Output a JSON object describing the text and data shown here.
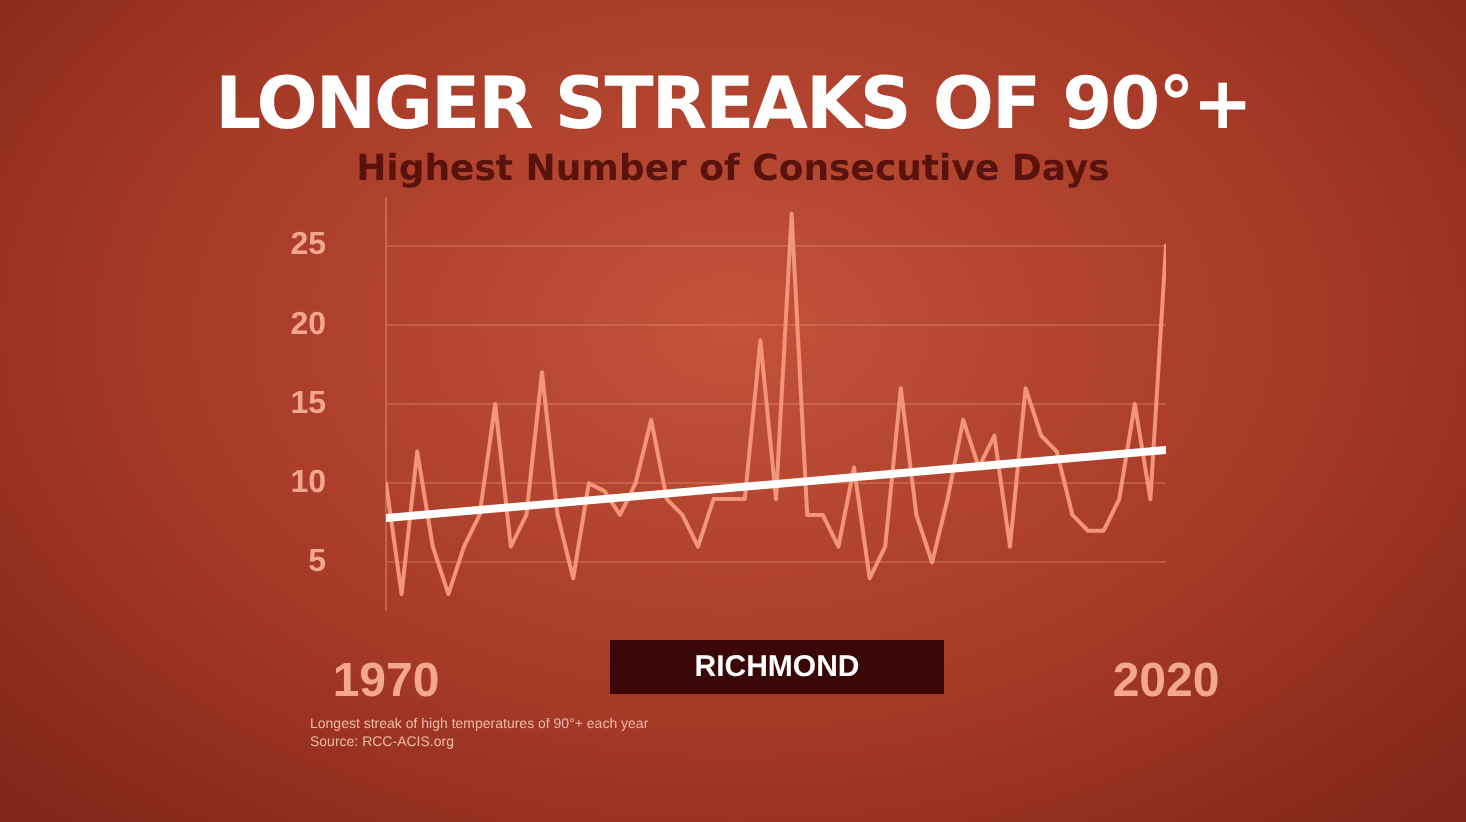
{
  "chart_data": {
    "type": "line",
    "title": "LONGER STREAKS OF 90°+",
    "subtitle": "Highest Number of  Consecutive Days",
    "x": [
      1970,
      1971,
      1972,
      1973,
      1974,
      1975,
      1976,
      1977,
      1978,
      1979,
      1980,
      1981,
      1982,
      1983,
      1984,
      1985,
      1986,
      1987,
      1988,
      1989,
      1990,
      1991,
      1992,
      1993,
      1994,
      1995,
      1996,
      1997,
      1998,
      1999,
      2000,
      2001,
      2002,
      2003,
      2004,
      2005,
      2006,
      2007,
      2008,
      2009,
      2010,
      2011,
      2012,
      2013,
      2014,
      2015,
      2016,
      2017,
      2018,
      2019,
      2020
    ],
    "series": [
      {
        "color": "#f4957a",
        "values": [
          10,
          3,
          12,
          6,
          3,
          6,
          8,
          15,
          6,
          8,
          17,
          8,
          4,
          10,
          9.5,
          8,
          10,
          14,
          9,
          8,
          6,
          9,
          9,
          9,
          19,
          9,
          27,
          8,
          8,
          6,
          11,
          4,
          6,
          16,
          8,
          5,
          9,
          14,
          11,
          13,
          6,
          16,
          13,
          12,
          8,
          7,
          7,
          9,
          15,
          9,
          25
        ]
      },
      {
        "type": "line",
        "color": "#ffffff",
        "x": [
          1970,
          2020
        ],
        "values": [
          7.8,
          12.1
        ]
      }
    ],
    "xlim": [
      1970,
      2020
    ],
    "xticks": [
      1970,
      2020
    ],
    "ylim": [
      2,
      28
    ],
    "yticks": [
      5,
      10,
      15,
      20,
      25
    ],
    "grid": "y",
    "marker": "none",
    "annotations": [
      "RICHMOND",
      "Longest streak of high temperatures of 90°+ each year",
      "Source: RCC-ACIS.org"
    ]
  }
}
